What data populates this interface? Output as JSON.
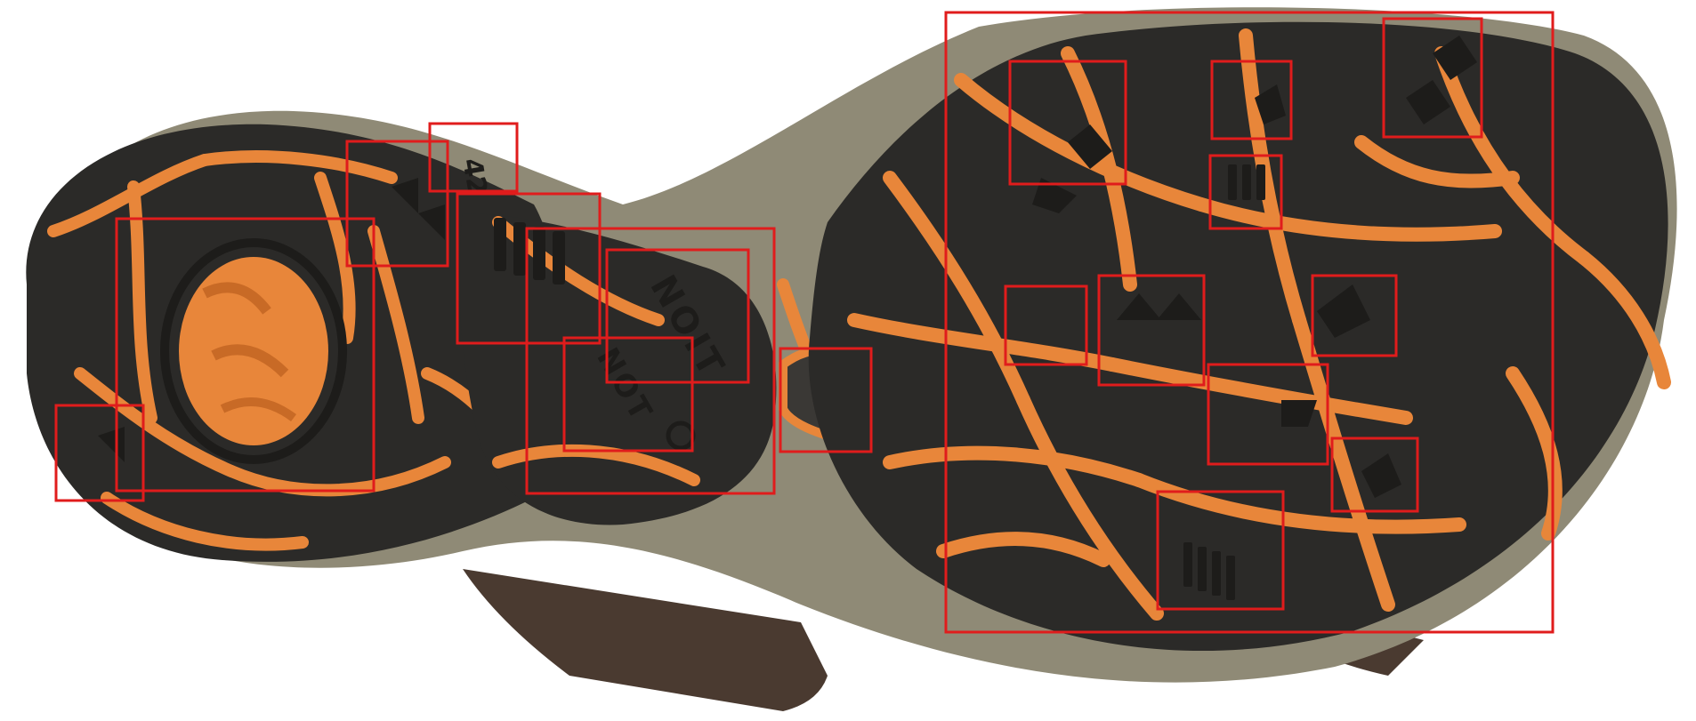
{
  "image": {
    "subject": "sandal-outsole-bottom-view",
    "colors": {
      "background": "#ffffff",
      "rubber_dark": "#2b2a28",
      "rubber_mid": "#3a3835",
      "tread_orange": "#e8863a",
      "tread_orange_dark": "#c86a26",
      "midsole": "#8f8a76",
      "midsole_light": "#a9a48f",
      "strap_brown": "#4a3a30",
      "box_red": "#e01c1c"
    }
  },
  "sole_markings": {
    "size_label": "42",
    "brand_text": "NOIT",
    "brand_text_lower": "NOT"
  },
  "annotation": {
    "box_count": 21,
    "box_color": "#e01c1c"
  }
}
